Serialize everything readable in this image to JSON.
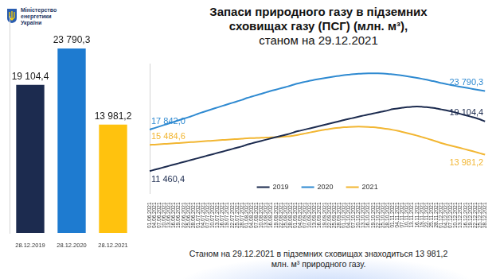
{
  "organization": "Міністерство енергетики України",
  "title": "Запаси природного газу в підземних сховищах газу (ПСГ) (млн. м³),",
  "subtitle": "станом на 29.12.2021",
  "footer": "Станом на 29.12.2021 в підземних сховищах знаходиться 13 981,2 млн. м³ природного газу.",
  "chart_data": [
    {
      "type": "bar",
      "categories": [
        "28.12.2019",
        "28.12.2020",
        "28.12.2021"
      ],
      "values": [
        19104.4,
        23790.3,
        13981.2
      ],
      "value_labels": [
        "19 104,4",
        "23 790,3",
        "13 981,2"
      ],
      "colors": [
        "#1c2b4f",
        "#1e7bd0",
        "#ffc20e"
      ],
      "data_labels": true,
      "ylim": [
        0,
        28000
      ],
      "grid": false,
      "tick_labels": "x"
    },
    {
      "type": "line",
      "categories": [
        "01.06.2021",
        "04.06.2021",
        "07.06.2021",
        "10.06.2021",
        "13.06.2021",
        "16.06.2021",
        "19.06.2021",
        "22.06.2021",
        "25.06.2021",
        "28.06.2021",
        "01.07.2021",
        "04.07.2021",
        "07.07.2021",
        "10.07.2021",
        "13.07.2021",
        "16.07.2021",
        "19.07.2021",
        "22.07.2021",
        "25.07.2021",
        "28.07.2021",
        "01.08.2021",
        "04.08.2021",
        "07.08.2021",
        "10.08.2021",
        "13.08.2021",
        "16.08.2021",
        "19.08.2021",
        "22.08.2021",
        "25.08.2021",
        "28.08.2021",
        "01.09.2021",
        "04.09.2021",
        "07.09.2021",
        "10.09.2021",
        "13.09.2021",
        "16.09.2021",
        "19.09.2021",
        "22.09.2021",
        "25.09.2021",
        "28.09.2021",
        "01.10.2021",
        "04.10.2021",
        "07.10.2021",
        "10.10.2021",
        "13.10.2021",
        "16.10.2021",
        "19.10.2021",
        "22.10.2021",
        "25.10.2021",
        "28.10.2021",
        "01.11.2021",
        "04.11.2021",
        "07.11.2021",
        "10.11.2021",
        "13.11.2021",
        "16.11.2021",
        "19.11.2021",
        "22.11.2021",
        "25.11.2021",
        "28.11.2021",
        "01.12.2021",
        "04.12.2021",
        "07.12.2021",
        "10.12.2021",
        "13.12.2021",
        "16.12.2021",
        "19.12.2021",
        "22.12.2021",
        "25.12.2021",
        "28.12.2021"
      ],
      "series": [
        {
          "name": "2019",
          "color": "#1c2b4f",
          "values": [
            11460.4,
            11660,
            11860,
            12060,
            12260,
            12460,
            12660,
            12860,
            13060,
            13260,
            13460,
            13660,
            13860,
            14060,
            14260,
            14460,
            14660,
            14860,
            15060,
            15260,
            15520,
            15720,
            15920,
            16110,
            16300,
            16490,
            16680,
            16870,
            17060,
            17250,
            17500,
            17680,
            17860,
            18040,
            18220,
            18400,
            18580,
            18760,
            18940,
            19120,
            19320,
            19490,
            19660,
            19830,
            20000,
            20160,
            20320,
            20480,
            20640,
            20800,
            21000,
            21100,
            21200,
            21300,
            21350,
            21380,
            21350,
            21300,
            21200,
            21100,
            20950,
            20800,
            20650,
            20450,
            20250,
            20050,
            19850,
            19650,
            19400,
            19104.4
          ],
          "value_labels": [
            "11 460,4",
            null,
            null,
            null,
            null,
            null,
            null,
            null,
            null,
            null,
            null,
            null,
            null,
            null,
            null,
            null,
            null,
            null,
            null,
            null,
            null,
            null,
            null,
            null,
            null,
            null,
            null,
            null,
            null,
            null,
            null,
            null,
            null,
            null,
            null,
            null,
            null,
            null,
            null,
            null,
            null,
            null,
            null,
            null,
            null,
            null,
            null,
            null,
            null,
            null,
            null,
            null,
            null,
            null,
            null,
            null,
            null,
            null,
            null,
            null,
            null,
            null,
            null,
            null,
            null,
            null,
            null,
            null,
            null,
            "19 104,4"
          ]
        },
        {
          "name": "2020",
          "color": "#2f8ad1",
          "values": [
            17842.0,
            18080,
            18320,
            18560,
            18800,
            19040,
            19280,
            19520,
            19760,
            20000,
            20300,
            20540,
            20780,
            21020,
            21260,
            21500,
            21730,
            21960,
            22190,
            22420,
            22700,
            22920,
            23140,
            23360,
            23580,
            23800,
            24000,
            24200,
            24400,
            24600,
            24850,
            25030,
            25200,
            25360,
            25510,
            25650,
            25780,
            25900,
            26010,
            26110,
            26220,
            26300,
            26370,
            26430,
            26470,
            26500,
            26510,
            26500,
            26470,
            26420,
            26340,
            26260,
            26160,
            26050,
            25930,
            25800,
            25660,
            25510,
            25350,
            25190,
            25000,
            24850,
            24700,
            24560,
            24420,
            24290,
            24160,
            24030,
            23910,
            23790.3
          ],
          "value_labels": [
            "17 842,0",
            null,
            null,
            null,
            null,
            null,
            null,
            null,
            null,
            null,
            null,
            null,
            null,
            null,
            null,
            null,
            null,
            null,
            null,
            null,
            null,
            null,
            null,
            null,
            null,
            null,
            null,
            null,
            null,
            null,
            null,
            null,
            null,
            null,
            null,
            null,
            null,
            null,
            null,
            null,
            null,
            null,
            null,
            null,
            null,
            null,
            null,
            null,
            null,
            null,
            null,
            null,
            null,
            null,
            null,
            null,
            null,
            null,
            null,
            null,
            null,
            null,
            null,
            null,
            null,
            null,
            null,
            null,
            null,
            "23 790,3"
          ]
        },
        {
          "name": "2021",
          "color": "#f2b632",
          "values": [
            15484.6,
            15530,
            15580,
            15630,
            15680,
            15730,
            15780,
            15830,
            15880,
            15930,
            15990,
            16040,
            16090,
            16140,
            16190,
            16240,
            16290,
            16340,
            16390,
            16440,
            16500,
            16530,
            16560,
            16590,
            16620,
            16650,
            16680,
            16720,
            16780,
            16850,
            16950,
            17100,
            17250,
            17400,
            17550,
            17700,
            17830,
            17950,
            18050,
            18130,
            18200,
            18250,
            18280,
            18290,
            18280,
            18250,
            18200,
            18130,
            18040,
            17930,
            17800,
            17650,
            17480,
            17300,
            17110,
            16910,
            16700,
            16480,
            16250,
            16010,
            15760,
            15560,
            15370,
            15180,
            14990,
            14800,
            14600,
            14400,
            14190,
            13981.2
          ],
          "value_labels": [
            "15 484,6",
            null,
            null,
            null,
            null,
            null,
            null,
            null,
            null,
            null,
            null,
            null,
            null,
            null,
            null,
            null,
            null,
            null,
            null,
            null,
            null,
            null,
            null,
            null,
            null,
            null,
            null,
            null,
            null,
            null,
            null,
            null,
            null,
            null,
            null,
            null,
            null,
            null,
            null,
            null,
            null,
            null,
            null,
            null,
            null,
            null,
            null,
            null,
            null,
            null,
            null,
            null,
            null,
            null,
            null,
            null,
            null,
            null,
            null,
            null,
            null,
            null,
            null,
            null,
            null,
            null,
            null,
            null,
            null,
            "13 981,2"
          ]
        }
      ],
      "data_labels": true,
      "ylim": [
        8000,
        28000
      ],
      "grid": false,
      "legend": "bottom",
      "tick_labels": "x"
    }
  ]
}
